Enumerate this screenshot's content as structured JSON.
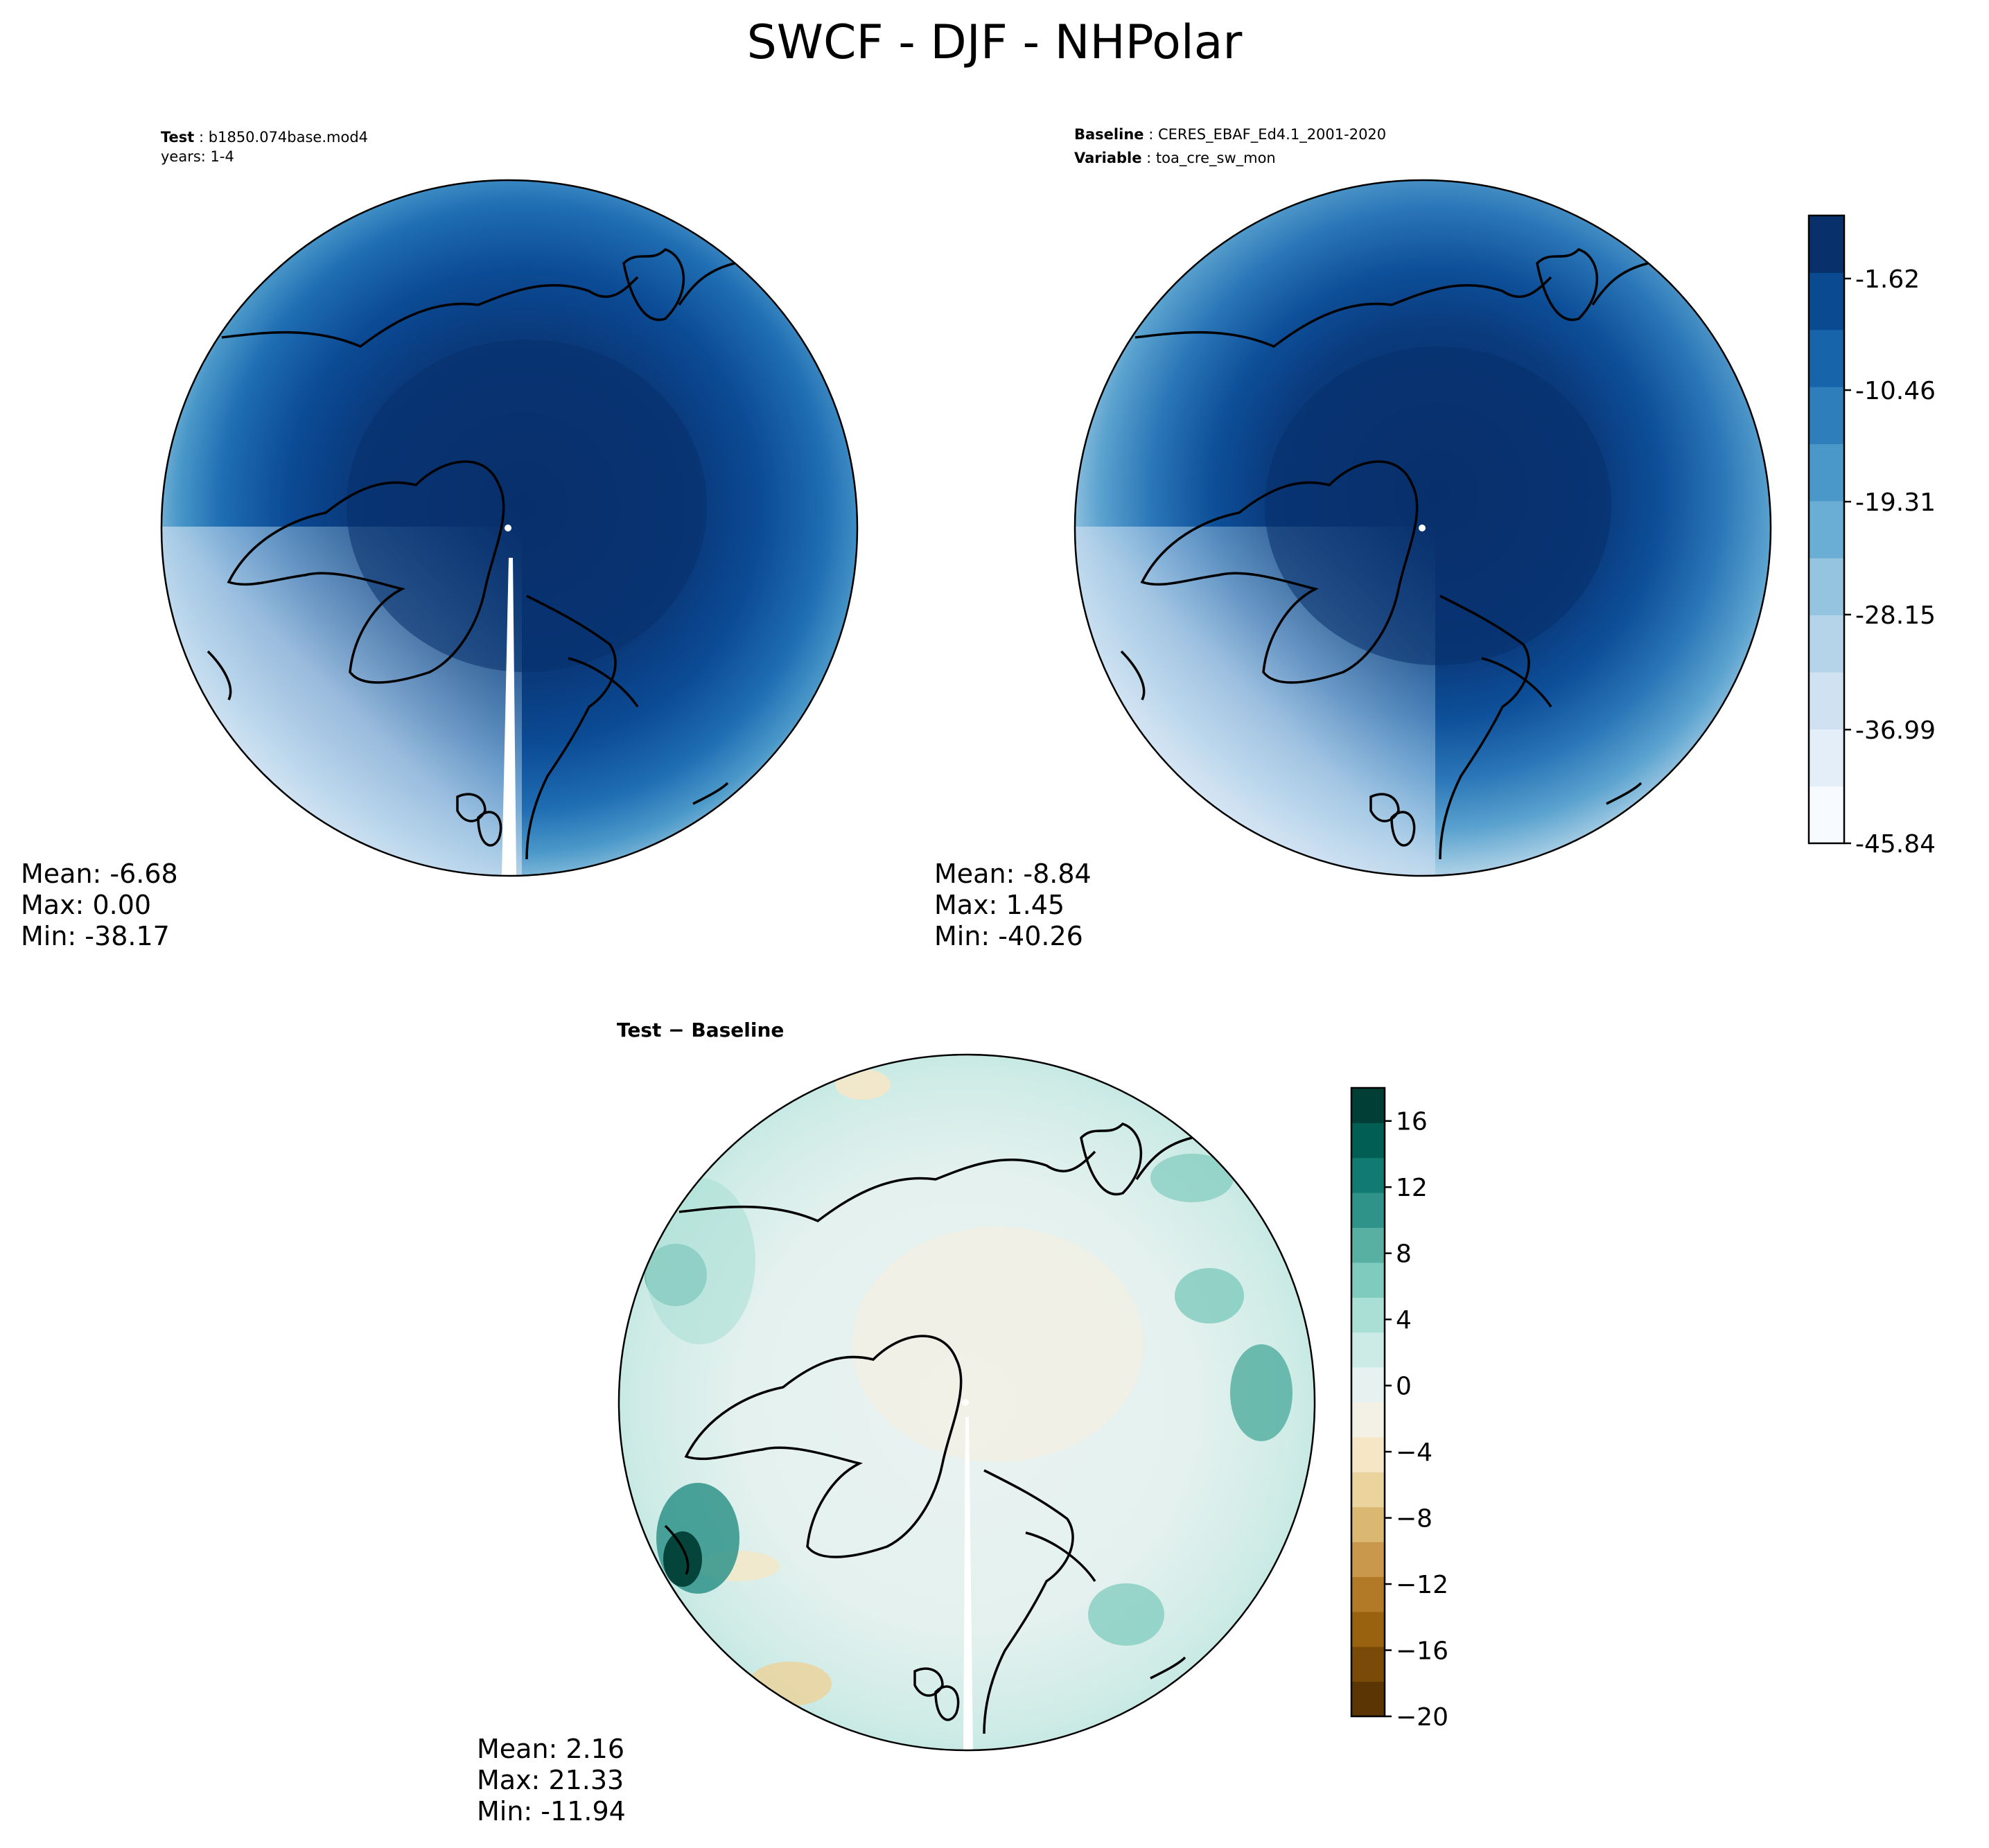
{
  "title": "SWCF - DJF - NHPolar",
  "panels": [
    {
      "id": "test",
      "header": [
        {
          "key": "Test",
          "value": "b1850.074base.mod4"
        },
        {
          "key": "",
          "value": "years: 1-4"
        }
      ],
      "stats": {
        "mean": "Mean: -6.68",
        "max": "Max:  0.00",
        "min": "Min: -38.17"
      }
    },
    {
      "id": "baseline",
      "header": [
        {
          "key": "Baseline",
          "value": "CERES_EBAF_Ed4.1_2001-2020"
        },
        {
          "key": "Variable",
          "value": "toa_cre_sw_mon"
        }
      ],
      "stats": {
        "mean": "Mean: -8.84",
        "max": "Max:  1.45",
        "min": "Min: -40.26"
      }
    },
    {
      "id": "diff",
      "title": "Test − Baseline",
      "stats": {
        "mean": "Mean:  2.16",
        "max": "Max: 21.33",
        "min": "Min: -11.94"
      }
    }
  ],
  "colorbars": {
    "main": {
      "colors": [
        "#f7fbff",
        "#e3eef9",
        "#d0e1f2",
        "#b6d4e9",
        "#94c4df",
        "#6aaed6",
        "#4a98c9",
        "#2e7ebc",
        "#1764ab",
        "#0a4a90",
        "#08306b"
      ],
      "ticks": [
        "-1.62",
        "-10.46",
        "-19.31",
        "-28.15",
        "-36.99",
        "-45.84"
      ]
    },
    "diff": {
      "colors": [
        "#5b3503",
        "#7a4a09",
        "#98620f",
        "#b27a26",
        "#c9984d",
        "#dbb872",
        "#ebd39e",
        "#f5e7c6",
        "#f3f0e6",
        "#e7f2f0",
        "#cdebe6",
        "#aadfd5",
        "#7fcbbd",
        "#58b0a3",
        "#2f938a",
        "#117a71",
        "#015e53",
        "#013f36"
      ],
      "ticks": [
        "16",
        "12",
        "8",
        "4",
        "0",
        "−4",
        "−8",
        "−12",
        "−16",
        "−20"
      ]
    }
  },
  "chart_data": [
    {
      "type": "heatmap",
      "title": "Test",
      "projection": "north polar stereographic",
      "variable": "SWCF",
      "season": "DJF",
      "value_range": [
        -45.84,
        1.62
      ],
      "colorbar_ticks": [
        -1.62,
        -10.46,
        -19.31,
        -28.15,
        -36.99,
        -45.84
      ],
      "summary": {
        "mean": -6.68,
        "max": 0.0,
        "min": -38.17
      }
    },
    {
      "type": "heatmap",
      "title": "Baseline",
      "projection": "north polar stereographic",
      "variable": "toa_cre_sw_mon",
      "season": "DJF",
      "value_range": [
        -45.84,
        1.62
      ],
      "colorbar_ticks": [
        -1.62,
        -10.46,
        -19.31,
        -28.15,
        -36.99,
        -45.84
      ],
      "summary": {
        "mean": -8.84,
        "max": 1.45,
        "min": -40.26
      }
    },
    {
      "type": "heatmap",
      "title": "Test − Baseline",
      "projection": "north polar stereographic",
      "value_range": [
        -20,
        18
      ],
      "colorbar_ticks": [
        16,
        12,
        8,
        4,
        0,
        -4,
        -8,
        -12,
        -16,
        -20
      ],
      "summary": {
        "mean": 2.16,
        "max": 21.33,
        "min": -11.94
      }
    }
  ]
}
